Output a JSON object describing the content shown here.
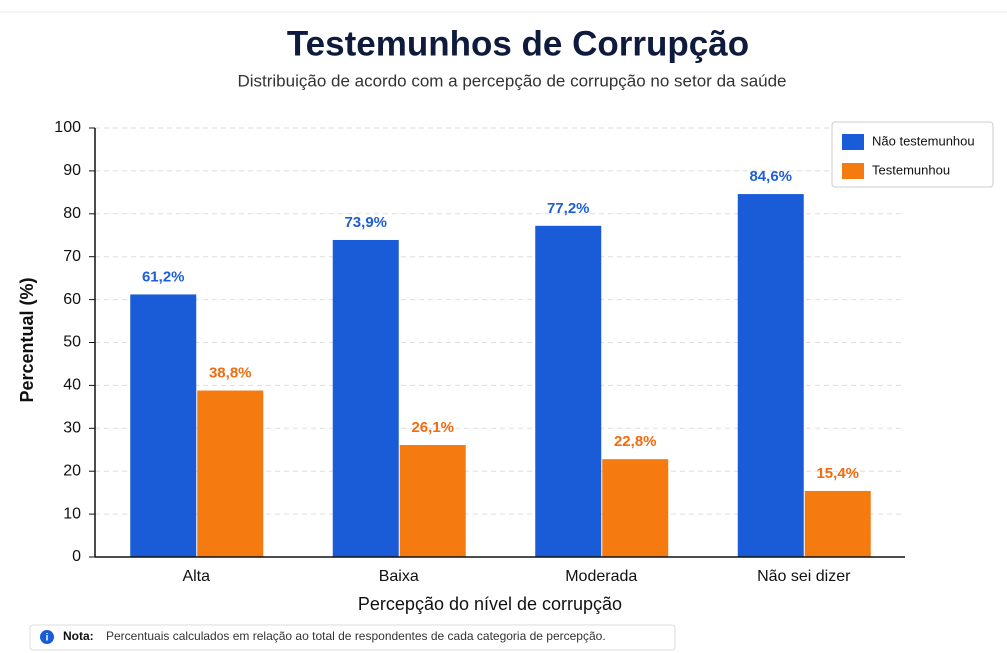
{
  "chart_data": {
    "type": "bar",
    "title": "Testemunhos de Corrupção",
    "subtitle": "Distribuição de acordo com a percepção de corrupção no setor da saúde",
    "x_label": "Percepção do nível de corrupção",
    "y_label": "Percentual (%)",
    "categories": [
      "Alta",
      "Baixa",
      "Moderada",
      "Não sei dizer"
    ],
    "series": [
      {
        "name": "Não testemunhou",
        "color": "#1a5bd8",
        "label_color": "#1f5fd6",
        "values": [
          61.2,
          73.9,
          77.2,
          84.6
        ],
        "value_labels": [
          "61,2%",
          "73,9%",
          "77,2%",
          "84,6%"
        ]
      },
      {
        "name": "Testemunhou",
        "color": "#f57a10",
        "label_color": "#f26b0f",
        "values": [
          38.8,
          26.1,
          22.8,
          15.4
        ],
        "value_labels": [
          "38,8%",
          "26,1%",
          "22,8%",
          "15,4%"
        ]
      }
    ],
    "ylim": [
      0,
      100
    ],
    "yticks": [
      0,
      10,
      20,
      30,
      40,
      50,
      60,
      70,
      80,
      90,
      100
    ],
    "grid": true,
    "legend": "upper right",
    "note": {
      "label": "Nota:",
      "text": "Percentuais calculados em relação ao total de respondentes de cada categoria de percepção."
    }
  }
}
